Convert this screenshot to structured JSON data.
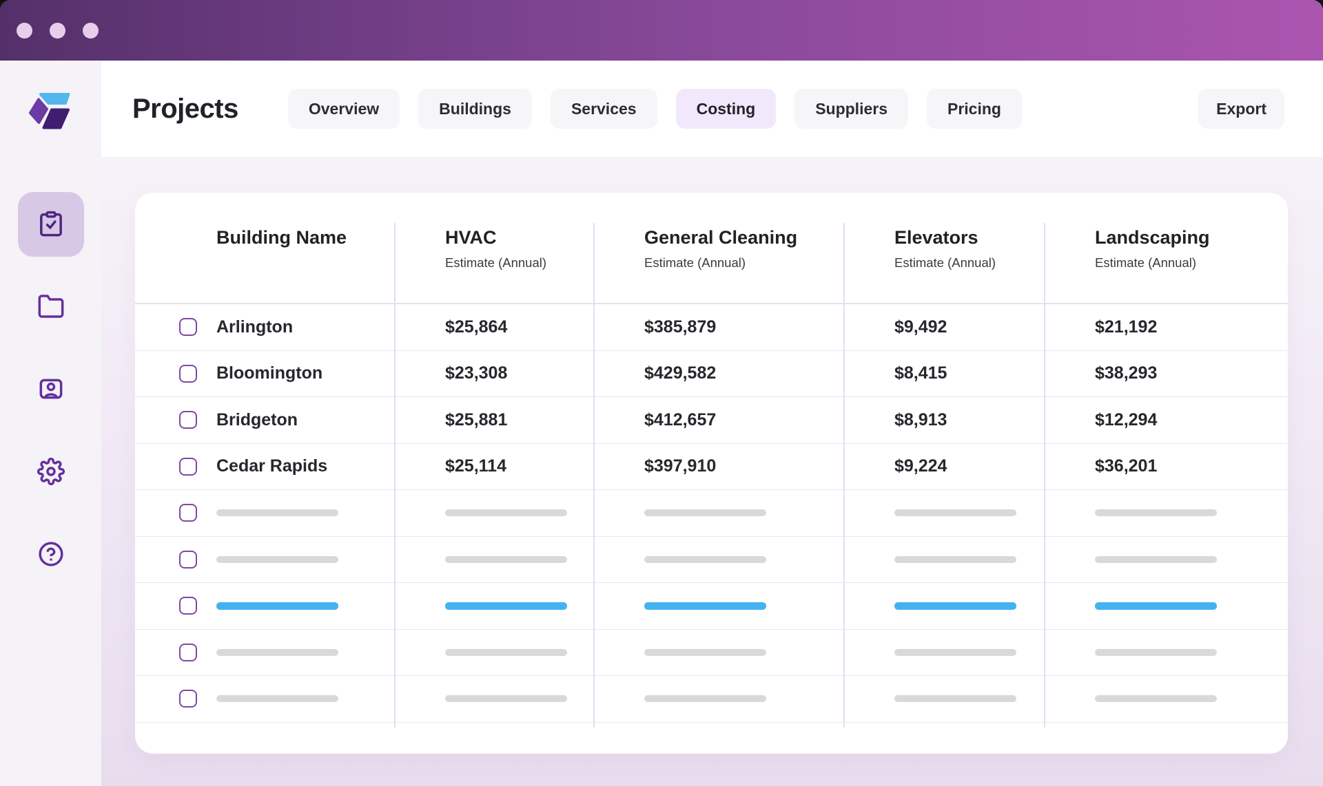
{
  "window": {
    "traffic_light_dots": 3,
    "titlebar_gradient": [
      "#543069",
      "#ab55af"
    ]
  },
  "sidebar": {
    "logo": "app-logo",
    "items": [
      {
        "icon": "clipboard-check-icon",
        "active": true
      },
      {
        "icon": "folder-icon",
        "active": false
      },
      {
        "icon": "user-card-icon",
        "active": false
      },
      {
        "icon": "gear-icon",
        "active": false
      },
      {
        "icon": "help-icon",
        "active": false
      }
    ]
  },
  "header": {
    "title": "Projects",
    "tabs": [
      {
        "label": "Overview",
        "active": false
      },
      {
        "label": "Buildings",
        "active": false
      },
      {
        "label": "Services",
        "active": false
      },
      {
        "label": "Costing",
        "active": true
      },
      {
        "label": "Suppliers",
        "active": false
      },
      {
        "label": "Pricing",
        "active": false
      }
    ],
    "export_label": "Export"
  },
  "table": {
    "columns": [
      {
        "label": "Building Name",
        "sublabel": ""
      },
      {
        "label": "HVAC",
        "sublabel": "Estimate (Annual)"
      },
      {
        "label": "General Cleaning",
        "sublabel": "Estimate (Annual)"
      },
      {
        "label": "Elevators",
        "sublabel": "Estimate (Annual)"
      },
      {
        "label": "Landscaping",
        "sublabel": "Estimate (Annual)"
      }
    ],
    "rows": [
      {
        "name": "Arlington",
        "values": [
          "$25,864",
          "$385,879",
          "$9,492",
          "$21,192"
        ]
      },
      {
        "name": "Bloomington",
        "values": [
          "$23,308",
          "$429,582",
          "$8,415",
          "$38,293"
        ]
      },
      {
        "name": "Bridgeton",
        "values": [
          "$25,881",
          "$412,657",
          "$8,913",
          "$12,294"
        ]
      },
      {
        "name": "Cedar Rapids",
        "values": [
          "$25,114",
          "$397,910",
          "$9,224",
          "$36,201"
        ]
      }
    ],
    "placeholder_rows": [
      {
        "style": "gray"
      },
      {
        "style": "gray"
      },
      {
        "style": "blue"
      },
      {
        "style": "gray"
      },
      {
        "style": "gray"
      }
    ]
  },
  "colors": {
    "accent_purple": "#63319c",
    "active_nav_bg": "#d7c9e6",
    "active_tab_bg": "#f2e8fc",
    "skeleton_gray": "#d9d8da",
    "skeleton_blue": "#45b2f0",
    "logo_blue": "#54b6ef",
    "logo_mid_purple": "#6b3aa4",
    "logo_dark_purple": "#3f1d71"
  }
}
